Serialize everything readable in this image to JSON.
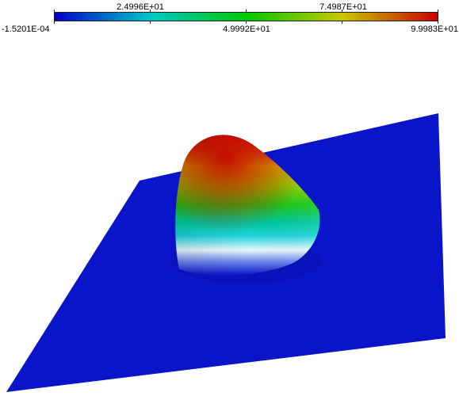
{
  "colorbar": {
    "min_label": "-1.5201E-04",
    "max_label": "9.9983E+01",
    "mid_label": "4.9992E+01",
    "quarter_label": "2.4996E+01",
    "three_quarter_label": "7.4987E+01",
    "min_value": -0.00015201,
    "max_value": 99.983,
    "colormap": [
      "#0000c8",
      "#00c8c8",
      "#00c800",
      "#c8c800",
      "#c80000"
    ]
  },
  "colors": {
    "plane": "#0a14c8",
    "peak": "#c81400"
  }
}
